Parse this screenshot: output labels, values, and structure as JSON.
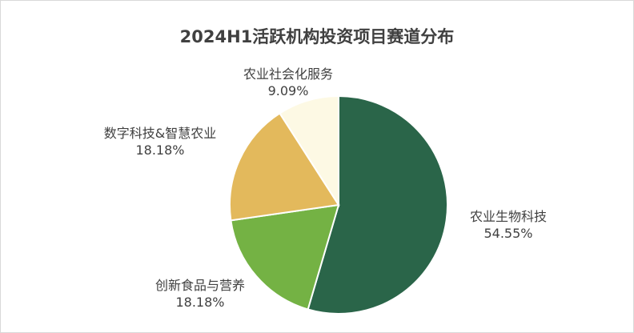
{
  "chart_data": {
    "type": "pie",
    "title": "2024H1活跃机构投资项目赛道分布",
    "categories": [
      "农业生物科技",
      "创新食品与营养",
      "数字科技&智慧农业",
      "农业社会化服务"
    ],
    "values": [
      54.55,
      18.18,
      18.18,
      9.09
    ],
    "value_labels": [
      "54.55%",
      "18.18%",
      "18.18%",
      "9.09%"
    ],
    "colors": [
      "#2A6549",
      "#74B244",
      "#E3B95C",
      "#FDF9E4"
    ],
    "start_angle_deg": 0,
    "direction": "clockwise",
    "legend": "none",
    "data_labels": "outside"
  }
}
